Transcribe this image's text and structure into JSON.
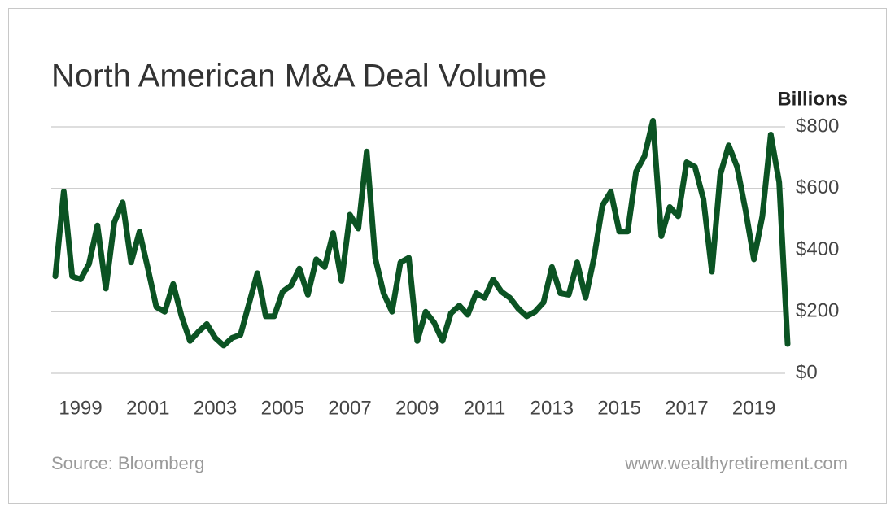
{
  "chart_data": {
    "type": "line",
    "title": "North American M&A Deal Volume",
    "y_axis_label": "Billions",
    "source": "Source: Bloomberg",
    "website": "www.wealthyretirement.com",
    "x": [
      1998.25,
      1998.5,
      1998.75,
      1999,
      1999.25,
      1999.5,
      1999.75,
      2000,
      2000.25,
      2000.5,
      2000.75,
      2001,
      2001.25,
      2001.5,
      2001.75,
      2002,
      2002.25,
      2002.5,
      2002.75,
      2003,
      2003.25,
      2003.5,
      2003.75,
      2004,
      2004.25,
      2004.5,
      2004.75,
      2005,
      2005.25,
      2005.5,
      2005.75,
      2006,
      2006.25,
      2006.5,
      2006.75,
      2007,
      2007.25,
      2007.5,
      2007.75,
      2008,
      2008.25,
      2008.5,
      2008.75,
      2009,
      2009.25,
      2009.5,
      2009.75,
      2010,
      2010.25,
      2010.5,
      2010.75,
      2011,
      2011.25,
      2011.5,
      2011.75,
      2012,
      2012.25,
      2012.5,
      2012.75,
      2013,
      2013.25,
      2013.5,
      2013.75,
      2014,
      2014.25,
      2014.5,
      2014.75,
      2015,
      2015.25,
      2015.5,
      2015.75,
      2016,
      2016.25,
      2016.5,
      2016.75,
      2017,
      2017.25,
      2017.5,
      2017.75,
      2018,
      2018.25,
      2018.5,
      2018.75,
      2019,
      2019.25,
      2019.5,
      2019.75,
      2020
    ],
    "series": [
      {
        "name": "Deal Volume",
        "color": "#0b5323",
        "values": [
          315,
          590,
          315,
          305,
          355,
          480,
          275,
          490,
          555,
          360,
          460,
          340,
          215,
          200,
          290,
          185,
          105,
          135,
          160,
          115,
          90,
          115,
          125,
          225,
          325,
          185,
          185,
          265,
          285,
          340,
          255,
          370,
          345,
          455,
          300,
          515,
          470,
          720,
          375,
          260,
          200,
          360,
          375,
          105,
          200,
          165,
          105,
          195,
          220,
          190,
          260,
          245,
          305,
          265,
          245,
          210,
          185,
          200,
          230,
          345,
          260,
          255,
          360,
          245,
          375,
          545,
          590,
          460,
          460,
          655,
          705,
          820,
          445,
          540,
          510,
          685,
          670,
          565,
          330,
          645,
          740,
          670,
          530,
          370,
          510,
          775,
          620,
          95
        ]
      }
    ],
    "xlim": [
      1998.25,
      2020
    ],
    "xticks": [
      1999,
      2001,
      2003,
      2005,
      2007,
      2009,
      2011,
      2013,
      2015,
      2017,
      2019
    ],
    "ylim": [
      0,
      800
    ],
    "yticks": [
      {
        "value": 0,
        "label": "$0"
      },
      {
        "value": 200,
        "label": "$200"
      },
      {
        "value": 400,
        "label": "$400"
      },
      {
        "value": 600,
        "label": "$600"
      },
      {
        "value": 800,
        "label": "$800"
      }
    ],
    "grid": true
  }
}
